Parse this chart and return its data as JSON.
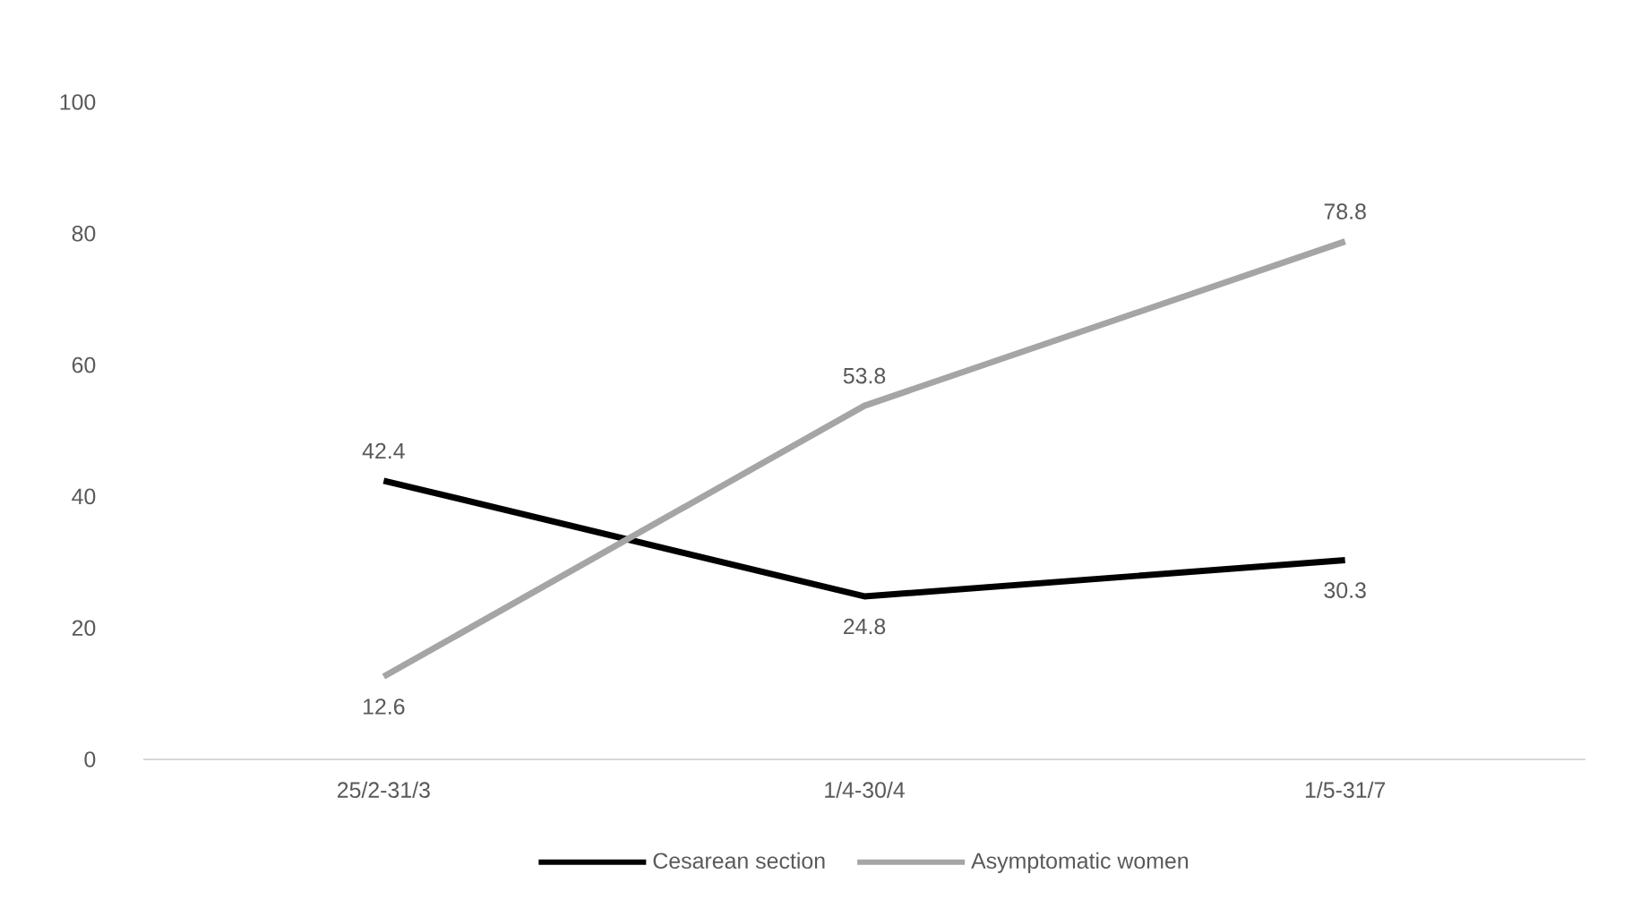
{
  "chart_data": {
    "type": "line",
    "categories": [
      "25/2-31/3",
      "1/4-30/4",
      "1/5-31/7"
    ],
    "series": [
      {
        "name": "Cesarean section",
        "color": "#000000",
        "values": [
          42.4,
          24.8,
          30.3
        ]
      },
      {
        "name": "Asymptomatic women",
        "color": "#a5a5a5",
        "values": [
          12.6,
          53.8,
          78.8
        ]
      }
    ],
    "ylim": [
      0,
      100
    ],
    "yticks": [
      0,
      20,
      40,
      60,
      80,
      100
    ],
    "data_labels": true,
    "legend": "bottom",
    "grid": false,
    "marker": "none",
    "line_style": "solid"
  }
}
